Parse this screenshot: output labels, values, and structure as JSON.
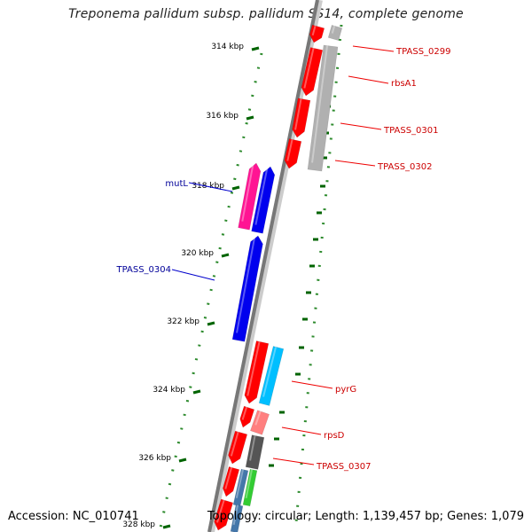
{
  "title": "Treponema pallidum subsp. pallidum SS14, complete genome",
  "footer": {
    "accession": "Accession: NC_010741",
    "summary": "Topology: circular; Length: 1,139,457 bp; Genes: 1,079"
  },
  "colors": {
    "red": "#ff0000",
    "magenta": "#ff1493",
    "blue": "#0000ee",
    "cyan": "#00bfff",
    "pink": "#ff7f7f",
    "gray": "#b0b0b0",
    "dark_gray": "#555555",
    "green": "#33cc33",
    "tick": "#006400",
    "label_red": "#cc0000",
    "label_blue": "#000099"
  },
  "tick_labels": [
    "314 kbp",
    "316 kbp",
    "318 kbp",
    "320 kbp",
    "322 kbp",
    "324 kbp",
    "326 kbp",
    "328 kbp"
  ],
  "gene_labels": [
    {
      "text": "TPASS_0299",
      "color": "red"
    },
    {
      "text": "rbsA1",
      "color": "red"
    },
    {
      "text": "TPASS_0301",
      "color": "red"
    },
    {
      "text": "TPASS_0302",
      "color": "red"
    },
    {
      "text": "mutL",
      "color": "blue"
    },
    {
      "text": "TPASS_0304",
      "color": "blue"
    },
    {
      "text": "pyrG",
      "color": "red"
    },
    {
      "text": "rpsD",
      "color": "red"
    },
    {
      "text": "TPASS_0307",
      "color": "red"
    }
  ]
}
